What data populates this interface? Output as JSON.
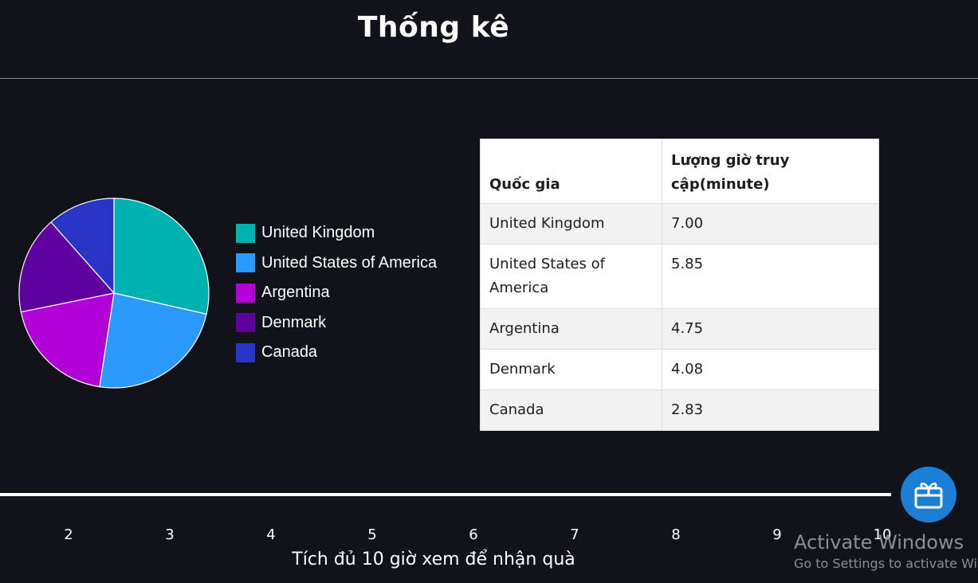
{
  "page": {
    "title": "Thống kê"
  },
  "chart_data": {
    "type": "pie",
    "categories": [
      "United Kingdom",
      "United States of America",
      "Argentina",
      "Denmark",
      "Canada"
    ],
    "values": [
      7.0,
      5.85,
      4.75,
      4.08,
      2.83
    ],
    "colors": [
      "#00b1b1",
      "#2b99fc",
      "#b200d8",
      "#5f00a0",
      "#2a35c8"
    ],
    "legend_position": "right"
  },
  "table": {
    "headers": [
      "Quốc gia",
      "Lượng giờ truy cập(minute)"
    ],
    "rows": [
      [
        "United Kingdom",
        "7.00"
      ],
      [
        "United States of America",
        "5.85"
      ],
      [
        "Argentina",
        "4.75"
      ],
      [
        "Denmark",
        "4.08"
      ],
      [
        "Canada",
        "2.83"
      ]
    ]
  },
  "progress": {
    "milestones": [
      "2",
      "3",
      "4",
      "5",
      "6",
      "7",
      "8",
      "9",
      "10"
    ],
    "caption": "Tích đủ 10 giờ xem để nhận quà"
  },
  "gift_button": {
    "icon": "gift-icon"
  },
  "watermark": {
    "title": "Activate Windows",
    "subtitle": "Go to Settings to activate Windows."
  }
}
